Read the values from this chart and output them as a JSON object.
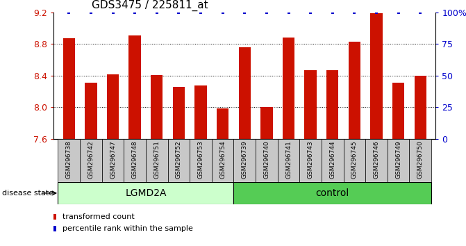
{
  "title": "GDS3475 / 225811_at",
  "samples": [
    "GSM296738",
    "GSM296742",
    "GSM296747",
    "GSM296748",
    "GSM296751",
    "GSM296752",
    "GSM296753",
    "GSM296754",
    "GSM296739",
    "GSM296740",
    "GSM296741",
    "GSM296743",
    "GSM296744",
    "GSM296745",
    "GSM296746",
    "GSM296749",
    "GSM296750"
  ],
  "bar_values": [
    8.87,
    8.31,
    8.42,
    8.91,
    8.41,
    8.26,
    8.28,
    7.99,
    8.76,
    8.0,
    8.88,
    8.47,
    8.47,
    8.83,
    9.19,
    8.31,
    8.4
  ],
  "lgmd2a_count": 8,
  "ylim": [
    7.6,
    9.2
  ],
  "yticks_left": [
    7.6,
    8.0,
    8.4,
    8.8,
    9.2
  ],
  "yticks_right": [
    0,
    25,
    50,
    75,
    100
  ],
  "bar_color": "#CC1100",
  "percentile_color": "#0000CC",
  "lgmd2a_color": "#CCFFCC",
  "control_color": "#55CC55",
  "sample_box_color": "#C8C8C8",
  "group_labels": [
    "LGMD2A",
    "control"
  ],
  "legend_red_label": "transformed count",
  "legend_blue_label": "percentile rank within the sample",
  "disease_state_label": "disease state",
  "title_fontsize": 11,
  "axis_fontsize": 9,
  "sample_fontsize": 6.5,
  "group_fontsize": 10,
  "legend_fontsize": 8
}
